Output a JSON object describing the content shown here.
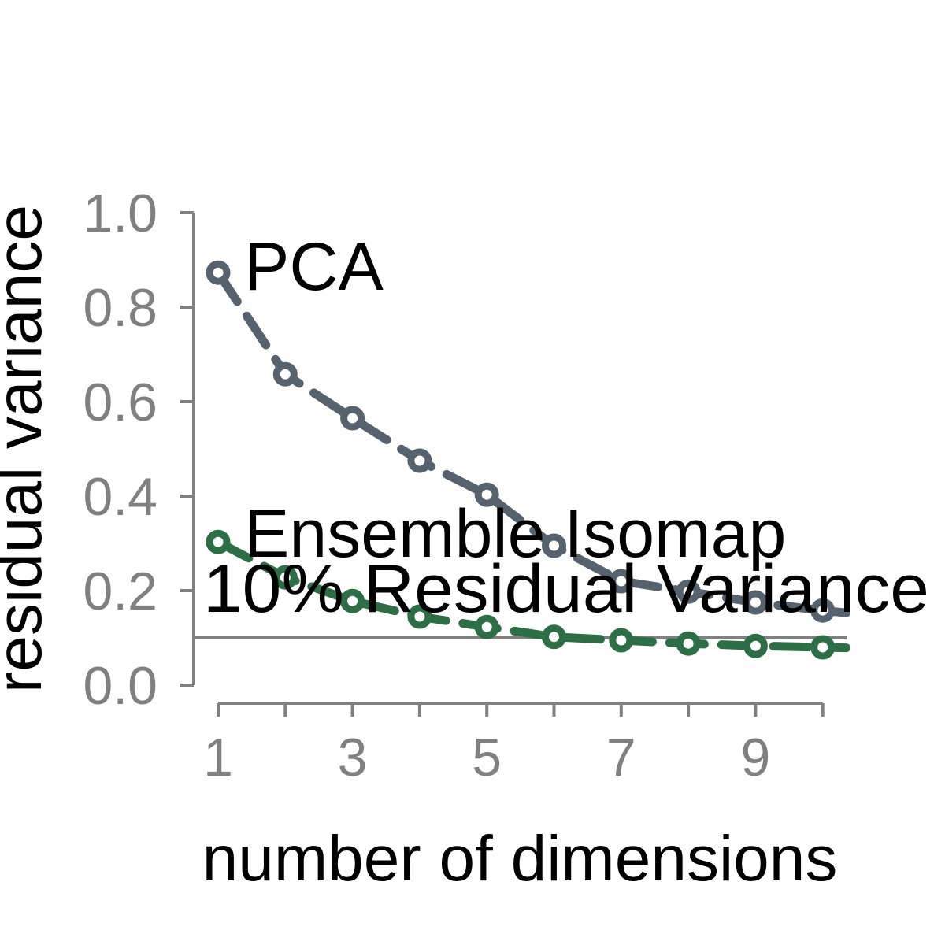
{
  "chart_data": {
    "type": "line",
    "title": "",
    "xlabel": "number of dimensions",
    "ylabel": "residual variance",
    "xlim": [
      0.6,
      10.35
    ],
    "ylim": [
      0.0,
      1.0
    ],
    "x_ticks": [
      1,
      2,
      3,
      4,
      5,
      6,
      7,
      8,
      9,
      10
    ],
    "x_tick_labels": [
      "1",
      "",
      "3",
      "",
      "5",
      "",
      "7",
      "",
      "9",
      ""
    ],
    "y_ticks": [
      0.0,
      0.2,
      0.4,
      0.6,
      0.8,
      1.0
    ],
    "y_tick_labels": [
      "0.0",
      "0.2",
      "0.4",
      "0.6",
      "0.8",
      "1.0"
    ],
    "grid": false,
    "legend": "none",
    "series": [
      {
        "name": "PCA",
        "color": "#56636f",
        "x": [
          1,
          2,
          3,
          4,
          5,
          6,
          7,
          8,
          9,
          10,
          10.35
        ],
        "values": [
          0.873,
          0.658,
          0.565,
          0.475,
          0.403,
          0.295,
          0.22,
          0.198,
          0.175,
          0.158,
          0.153
        ]
      },
      {
        "name": "Ensemble Isomap",
        "color": "#2e6e47",
        "x": [
          1,
          2,
          3,
          4,
          5,
          6,
          7,
          8,
          9,
          10,
          10.35
        ],
        "values": [
          0.303,
          0.228,
          0.178,
          0.145,
          0.123,
          0.102,
          0.095,
          0.088,
          0.083,
          0.08,
          0.079
        ]
      }
    ],
    "reference_line": {
      "value": 0.1,
      "label": "10% Residual Variance",
      "color": "#808080"
    },
    "annotations": [
      {
        "text": "PCA",
        "series": "PCA"
      },
      {
        "text": "Ensemble Isomap",
        "series": "Ensemble Isomap"
      }
    ],
    "axis_color": "#808080"
  }
}
